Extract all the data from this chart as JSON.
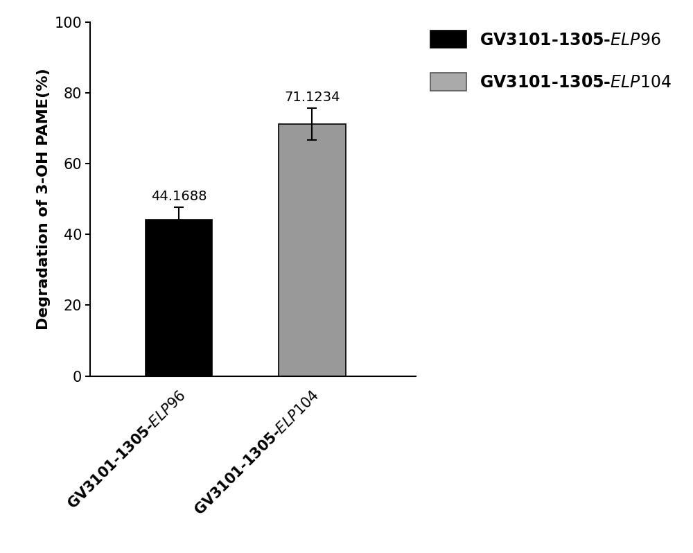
{
  "categories": [
    "GV3101-1305-ELP96",
    "GV3101-1305-ELP104"
  ],
  "values": [
    44.1688,
    71.1234
  ],
  "errors": [
    3.5,
    4.5
  ],
  "bar_colors": [
    "#000000",
    "#999999"
  ],
  "ylabel": "Degradation of 3-OH PAME(%)",
  "ylim": [
    0,
    100
  ],
  "yticks": [
    0,
    20,
    40,
    60,
    80,
    100
  ],
  "bar_width": 0.45,
  "value_labels": [
    "44.1688",
    "71.1234"
  ],
  "background_color": "#ffffff",
  "tick_fontsize": 15,
  "label_fontsize": 16,
  "annotation_fontsize": 14,
  "legend_fontsize": 17,
  "x_positions": [
    0.6,
    1.5
  ]
}
